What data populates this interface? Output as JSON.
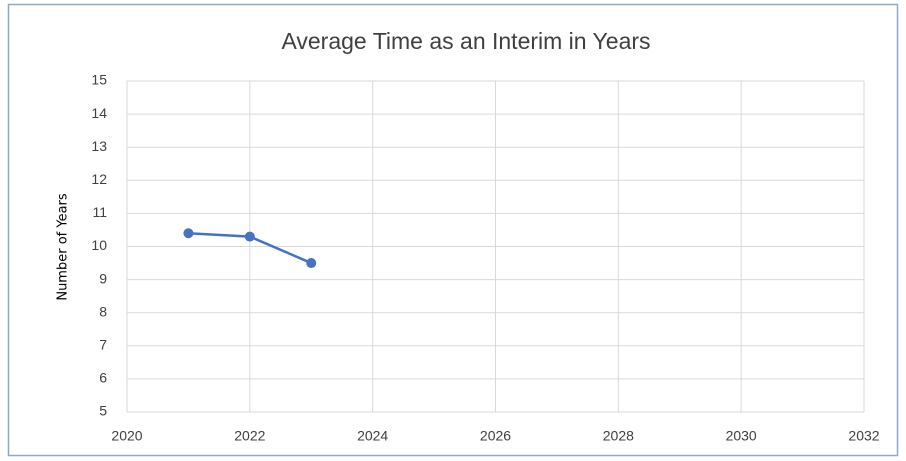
{
  "chart_data": {
    "type": "line",
    "title": "Average Time as an Interim in Years",
    "y_label": "Number of Years",
    "x": [
      2021,
      2022,
      2023
    ],
    "values": [
      10.4,
      10.3,
      9.5
    ],
    "color": "#4472c4",
    "xlim": [
      2020,
      2032
    ],
    "xticks": [
      2020,
      2022,
      2024,
      2026,
      2028,
      2030,
      2032
    ],
    "ylim": [
      5,
      15
    ],
    "yticks": [
      5,
      6,
      7,
      8,
      9,
      10,
      11,
      12,
      13,
      14,
      15
    ],
    "grid": true,
    "markers": true
  }
}
